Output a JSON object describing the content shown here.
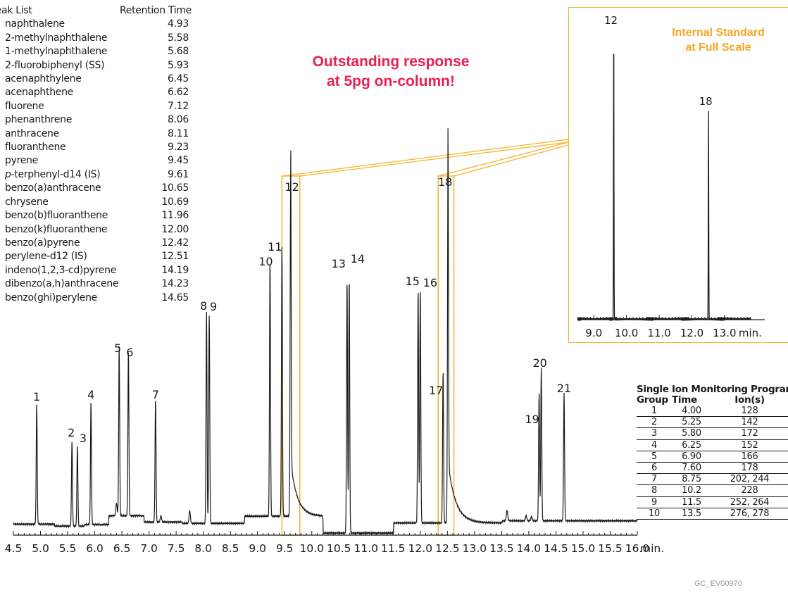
{
  "peak_list": {
    "header_name": "Peak List",
    "header_rt": "Retention Time",
    "rows": [
      {
        "name": "naphthalene",
        "rt": "4.93"
      },
      {
        "name": "2-methylnaphthalene",
        "rt": "5.58"
      },
      {
        "name": "1-methylnaphthalene",
        "rt": "5.68"
      },
      {
        "name": "2-fluorobiphenyl (SS)",
        "rt": "5.93"
      },
      {
        "name": "acenaphthylene",
        "rt": "6.45"
      },
      {
        "name": "acenaphthene",
        "rt": "6.62"
      },
      {
        "name": "fluorene",
        "rt": "7.12"
      },
      {
        "name": "phenanthrene",
        "rt": "8.06"
      },
      {
        "name": "anthracene",
        "rt": "8.11"
      },
      {
        "name": "fluoranthene",
        "rt": "9.23"
      },
      {
        "name": "pyrene",
        "rt": "9.45"
      },
      {
        "name": "p-terphenyl-d14 (IS)",
        "rt": "9.61"
      },
      {
        "name": "benzo(a)anthracene",
        "rt": "10.65"
      },
      {
        "name": "chrysene",
        "rt": "10.69"
      },
      {
        "name": "benzo(b)fluoranthene",
        "rt": "11.96"
      },
      {
        "name": "benzo(k)fluoranthene",
        "rt": "12.00"
      },
      {
        "name": "benzo(a)pyrene",
        "rt": "12.42"
      },
      {
        "name": "perylene-d12 (IS)",
        "rt": "12.51"
      },
      {
        "name": "indeno(1,2,3-cd)pyrene",
        "rt": "14.19"
      },
      {
        "name": "dibenzo(a,h)anthracene",
        "rt": "14.23"
      },
      {
        "name": "benzo(ghi)perylene",
        "rt": "14.65"
      }
    ]
  },
  "callout": {
    "line1": "Outstanding response",
    "line2": "at 5pg on-column!"
  },
  "inset": {
    "title_line1": "Internal Standard",
    "title_line2": "at Full Scale"
  },
  "sim_program": {
    "title": "Single Ion Monitoring Program",
    "headers": [
      "Group",
      "Time",
      "Ion(s)"
    ],
    "rows": [
      {
        "group": "1",
        "time": "4.00",
        "ions": "128"
      },
      {
        "group": "2",
        "time": "5.25",
        "ions": "142"
      },
      {
        "group": "3",
        "time": "5.80",
        "ions": "172"
      },
      {
        "group": "4",
        "time": "6.25",
        "ions": "152"
      },
      {
        "group": "5",
        "time": "6.90",
        "ions": "166"
      },
      {
        "group": "6",
        "time": "7.60",
        "ions": "178"
      },
      {
        "group": "7",
        "time": "8.75",
        "ions": "202, 244"
      },
      {
        "group": "8",
        "time": "10.2",
        "ions": "228"
      },
      {
        "group": "9",
        "time": "11.5",
        "ions": "252, 264"
      },
      {
        "group": "10",
        "time": "13.5",
        "ions": "276, 278"
      }
    ]
  },
  "footer_code": "GC_EV00970",
  "colors": {
    "trace": "#1a1a1a",
    "highlight": "#f5b32a",
    "callout": "#e8214f",
    "inset_title": "#f5a623"
  },
  "chart_data": [
    {
      "type": "line",
      "xlabel": "min.",
      "xlim": [
        4.5,
        16.0
      ],
      "xticks": [
        "4.5",
        "5.0",
        "5.5",
        "6.0",
        "6.5",
        "7.0",
        "7.5",
        "8.0",
        "8.5",
        "9.0",
        "9.5",
        "10.0",
        "10.5",
        "11.0",
        "11.5",
        "12.0",
        "12.5",
        "13.0",
        "13.5",
        "14.0",
        "14.5",
        "15.0",
        "15.5",
        "16.0"
      ],
      "highlight_windows": [
        [
          9.45,
          9.78
        ],
        [
          12.33,
          12.62
        ]
      ],
      "baseline_steps": [
        {
          "x": 4.5,
          "y": 0.012
        },
        {
          "x": 5.25,
          "y": 0.012
        },
        {
          "x": 5.26,
          "y": 0.003
        },
        {
          "x": 5.8,
          "y": 0.004
        },
        {
          "x": 5.81,
          "y": 0.01
        },
        {
          "x": 6.25,
          "y": 0.01
        },
        {
          "x": 6.26,
          "y": 0.052
        },
        {
          "x": 6.9,
          "y": 0.05
        },
        {
          "x": 6.91,
          "y": 0.022
        },
        {
          "x": 7.6,
          "y": 0.022
        },
        {
          "x": 7.61,
          "y": 0.016
        },
        {
          "x": 8.75,
          "y": 0.02
        },
        {
          "x": 8.76,
          "y": 0.05
        },
        {
          "x": 10.2,
          "y": 0.04
        },
        {
          "x": 10.21,
          "y": -0.03
        },
        {
          "x": 11.5,
          "y": -0.03
        },
        {
          "x": 11.51,
          "y": 0.018
        },
        {
          "x": 13.5,
          "y": 0.02
        },
        {
          "x": 13.51,
          "y": 0.028
        },
        {
          "x": 16.0,
          "y": 0.028
        }
      ],
      "peaks": [
        {
          "label": "1",
          "x": 4.93,
          "y": 0.57
        },
        {
          "label": "2",
          "x": 5.58,
          "y": 0.4
        },
        {
          "label": "3",
          "x": 5.68,
          "y": 0.38
        },
        {
          "label": "4",
          "x": 5.93,
          "y": 0.58
        },
        {
          "label": "5",
          "x": 6.45,
          "y": 0.8
        },
        {
          "label": "6",
          "x": 6.62,
          "y": 0.78
        },
        {
          "label": "7",
          "x": 7.12,
          "y": 0.58
        },
        {
          "label": "8",
          "x": 8.06,
          "y": 1.0
        },
        {
          "label": "9",
          "x": 8.11,
          "y": 0.99
        },
        {
          "label": "10",
          "x": 9.23,
          "y": 1.21
        },
        {
          "label": "11",
          "x": 9.45,
          "y": 1.28
        },
        {
          "label": "12",
          "x": 9.61,
          "y": 1.57
        },
        {
          "label": "13",
          "x": 10.65,
          "y": 1.2
        },
        {
          "label": "14",
          "x": 10.69,
          "y": 1.21
        },
        {
          "label": "15",
          "x": 11.96,
          "y": 1.11
        },
        {
          "label": "16",
          "x": 12.0,
          "y": 1.11
        },
        {
          "label": "17",
          "x": 12.42,
          "y": 0.72
        },
        {
          "label": "18",
          "x": 12.51,
          "y": 1.58
        },
        {
          "label": "19",
          "x": 14.19,
          "y": 0.61
        },
        {
          "label": "20",
          "x": 14.23,
          "y": 0.73
        },
        {
          "label": "21",
          "x": 14.65,
          "y": 0.61
        }
      ]
    },
    {
      "type": "line",
      "title": "Internal Standard at Full Scale",
      "xlabel": "min.",
      "xlim": [
        8.5,
        13.8
      ],
      "xticks": [
        "9.0",
        "10.0",
        "11.0",
        "12.0",
        "13.0"
      ],
      "peaks": [
        {
          "label": "12",
          "x": 9.61,
          "y": 1.0
        },
        {
          "label": "18",
          "x": 12.51,
          "y": 0.72
        }
      ]
    }
  ]
}
